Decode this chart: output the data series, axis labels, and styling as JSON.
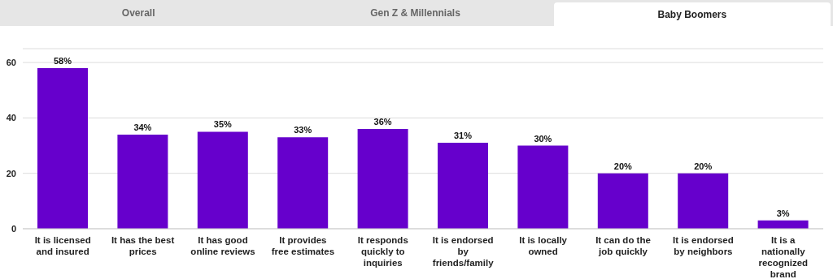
{
  "chart_data": {
    "type": "bar",
    "title": "Baby Boomers",
    "annotations": [
      "Overall",
      "Gen Z & Millennials"
    ],
    "categories": [
      "It is licensed and insured",
      "It has the best prices",
      "It has good online reviews",
      "It provides free estimates",
      "It responds quickly to inquiries",
      "It is endorsed by friends/family",
      "It is locally owned",
      "It can do the job quickly",
      "It is endorsed by neighbors",
      "It is a nationally recognized brand"
    ],
    "values": [
      58,
      34,
      35,
      33,
      36,
      31,
      30,
      20,
      20,
      3
    ],
    "value_labels": [
      "58%",
      "34%",
      "35%",
      "33%",
      "36%",
      "31%",
      "30%",
      "20%",
      "20%",
      "3%"
    ],
    "color": "#6600cc",
    "ylim": [
      0,
      65
    ],
    "yticks": [
      0,
      20,
      40,
      60
    ],
    "grid": "y",
    "legend": false
  }
}
